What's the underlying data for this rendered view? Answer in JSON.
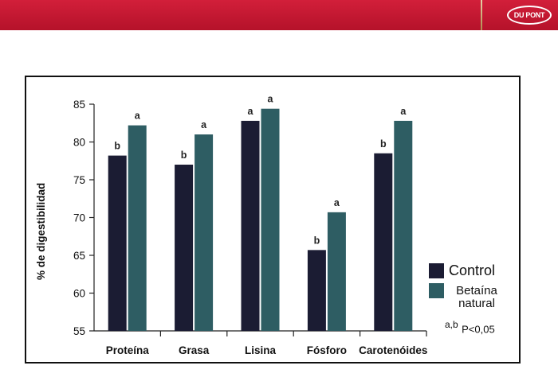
{
  "brand": {
    "logo_text": "DU PONT"
  },
  "colors": {
    "banner": "#c8182f",
    "control": "#1b1c33",
    "betaina": "#2e5d63"
  },
  "significance_note": {
    "letters": "a,b",
    "text": "P<0,05"
  },
  "chart_data": {
    "type": "bar",
    "title": "",
    "xlabel": "",
    "ylabel": "% de digestibilidad",
    "ylim": [
      55,
      85
    ],
    "yticks": [
      "55",
      "60",
      "65",
      "70",
      "75",
      "80",
      "85"
    ],
    "grid": false,
    "legend_position": "bottom-right",
    "categories": [
      "Proteína",
      "Grasa",
      "Lisina",
      "Fósforo",
      "Carotenóides"
    ],
    "series": [
      {
        "name": "Control",
        "color": "#1b1c33",
        "values": [
          78.2,
          77.0,
          82.8,
          65.7,
          78.5
        ],
        "labels": [
          "b",
          "b",
          "a",
          "b",
          "b"
        ]
      },
      {
        "name": "Betaína natural",
        "color": "#2e5d63",
        "values": [
          82.2,
          81.0,
          84.4,
          70.7,
          82.8
        ],
        "labels": [
          "a",
          "a",
          "a",
          "a",
          "a"
        ]
      }
    ]
  }
}
